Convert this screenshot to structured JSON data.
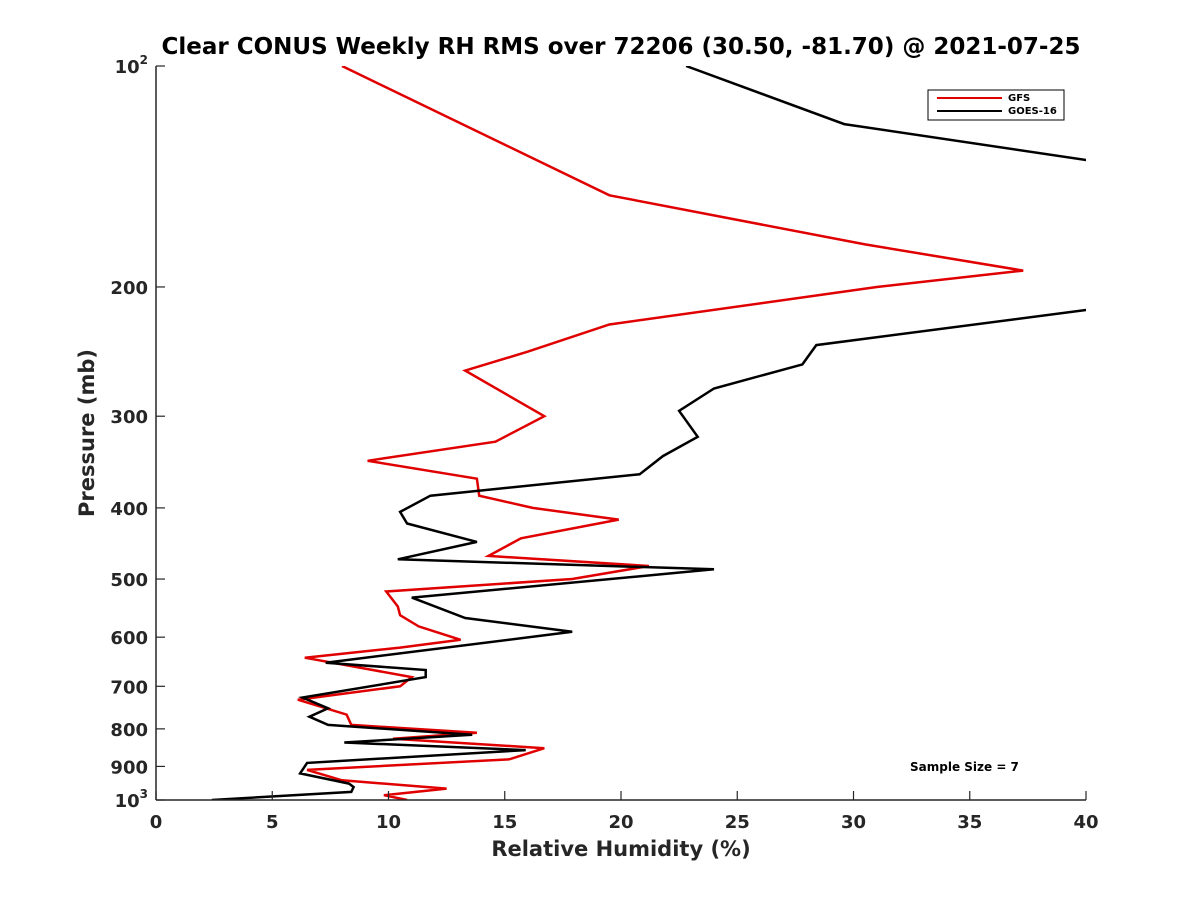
{
  "chart_data": {
    "type": "line",
    "title": "Clear CONUS Weekly RH RMS over 72206 (30.50, -81.70) @ 2021-07-25",
    "xlabel": "Relative Humidity (%)",
    "ylabel": "Pressure (mb)",
    "xlim": [
      0,
      40
    ],
    "ylim": [
      100,
      1000
    ],
    "y_scale": "log",
    "y_reversed": true,
    "grid": false,
    "legend_position": "top-right",
    "x_ticks": [
      "0",
      "5",
      "10",
      "15",
      "20",
      "25",
      "30",
      "35",
      "40"
    ],
    "y_ticks": [
      {
        "value": 100,
        "base": "10",
        "exp": "2"
      },
      {
        "value": 200,
        "label": "200"
      },
      {
        "value": 300,
        "label": "300"
      },
      {
        "value": 400,
        "label": "400"
      },
      {
        "value": 500,
        "label": "500"
      },
      {
        "value": 600,
        "label": "600"
      },
      {
        "value": 700,
        "label": "700"
      },
      {
        "value": 800,
        "label": "800"
      },
      {
        "value": 900,
        "label": "900"
      },
      {
        "value": 1000,
        "base": "10",
        "exp": "3"
      }
    ],
    "annotation": "Sample Size = 7",
    "series": [
      {
        "name": "GFS",
        "color": "#e00000",
        "points": [
          [
            8.0,
            100
          ],
          [
            19.5,
            150
          ],
          [
            30.5,
            175
          ],
          [
            37.3,
            190
          ],
          [
            31.0,
            200
          ],
          [
            19.5,
            225
          ],
          [
            16.0,
            245
          ],
          [
            13.3,
            260
          ],
          [
            16.7,
            300
          ],
          [
            14.6,
            325
          ],
          [
            9.1,
            345
          ],
          [
            13.8,
            365
          ],
          [
            13.9,
            385
          ],
          [
            16.2,
            400
          ],
          [
            19.9,
            415
          ],
          [
            15.7,
            440
          ],
          [
            14.3,
            465
          ],
          [
            21.2,
            480
          ],
          [
            17.9,
            500
          ],
          [
            9.9,
            520
          ],
          [
            10.4,
            545
          ],
          [
            10.5,
            560
          ],
          [
            11.3,
            580
          ],
          [
            13.1,
            605
          ],
          [
            10.5,
            620
          ],
          [
            6.4,
            640
          ],
          [
            11.0,
            680
          ],
          [
            10.5,
            700
          ],
          [
            6.1,
            730
          ],
          [
            8.2,
            765
          ],
          [
            8.4,
            790
          ],
          [
            13.8,
            810
          ],
          [
            10.2,
            825
          ],
          [
            16.7,
            850
          ],
          [
            15.2,
            880
          ],
          [
            6.5,
            910
          ],
          [
            8.0,
            940
          ],
          [
            12.5,
            965
          ],
          [
            9.8,
            985
          ],
          [
            10.8,
            1000
          ]
        ]
      },
      {
        "name": "GOES-16",
        "color": "#000000",
        "points": [
          [
            22.8,
            100
          ],
          [
            29.6,
            120
          ],
          [
            40.5,
            135
          ],
          [
            40.5,
            215
          ],
          [
            40.0,
            215
          ],
          [
            28.4,
            240
          ],
          [
            27.8,
            255
          ],
          [
            24.0,
            275
          ],
          [
            22.5,
            295
          ],
          [
            23.3,
            320
          ],
          [
            21.8,
            340
          ],
          [
            20.8,
            360
          ],
          [
            11.8,
            385
          ],
          [
            10.5,
            405
          ],
          [
            10.8,
            420
          ],
          [
            13.8,
            445
          ],
          [
            10.4,
            470
          ],
          [
            24.0,
            485
          ],
          [
            11.0,
            530
          ],
          [
            13.3,
            565
          ],
          [
            17.9,
            590
          ],
          [
            7.3,
            650
          ],
          [
            11.6,
            665
          ],
          [
            11.6,
            680
          ],
          [
            6.3,
            725
          ],
          [
            7.4,
            750
          ],
          [
            6.6,
            770
          ],
          [
            7.4,
            790
          ],
          [
            13.6,
            815
          ],
          [
            8.1,
            835
          ],
          [
            15.9,
            855
          ],
          [
            6.5,
            890
          ],
          [
            6.2,
            920
          ],
          [
            8.3,
            950
          ],
          [
            8.5,
            960
          ],
          [
            8.4,
            975
          ],
          [
            2.4,
            1000
          ]
        ]
      }
    ]
  }
}
